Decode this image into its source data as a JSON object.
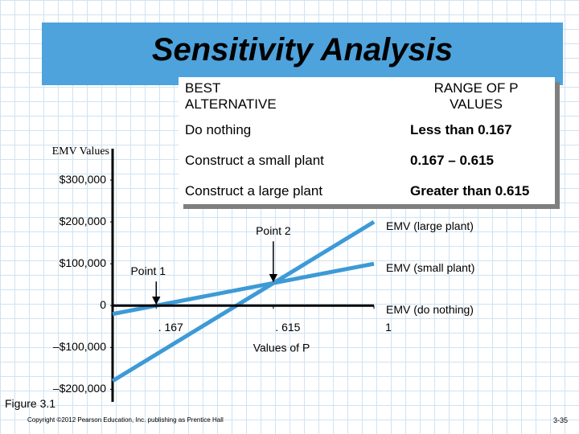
{
  "slide": {
    "title": "Sensitivity Analysis",
    "figure_label": "Figure 3.1",
    "copyright": "Copyright ©2012 Pearson Education, Inc. publishing as Prentice Hall",
    "page_number": "3-35"
  },
  "table": {
    "headers": [
      "BEST ALTERNATIVE",
      "RANGE OF P VALUES"
    ],
    "rows": [
      [
        "Do nothing",
        "Less than 0.167"
      ],
      [
        "Construct a small plant",
        "0.167 – 0.615"
      ],
      [
        "Construct a large plant",
        "Greater than 0.615"
      ]
    ]
  },
  "chart_data": {
    "type": "line",
    "y_label": "EMV Values",
    "x_label": "Values of P",
    "x": [
      0,
      1
    ],
    "xlim": [
      0,
      1
    ],
    "xticks": [
      {
        "value": 0.167,
        "label": ". 167"
      },
      {
        "value": 0.615,
        "label": ". 615"
      },
      1
    ],
    "ylim": [
      -230000,
      375000
    ],
    "yticks": [
      {
        "value": -200000,
        "label": "–$200,000"
      },
      {
        "value": -100000,
        "label": "–$100,000"
      },
      0,
      {
        "value": 100000,
        "label": "$100,000"
      },
      {
        "value": 200000,
        "label": "$200,000"
      },
      {
        "value": 300000,
        "label": "$300,000"
      }
    ],
    "series": [
      {
        "name": "EMV (large plant)",
        "color": "#3d9ad6",
        "values": [
          -180000,
          200000
        ]
      },
      {
        "name": "EMV (small plant)",
        "color": "#3d9ad6",
        "values": [
          -20000,
          100000
        ]
      },
      {
        "name": "EMV (do nothing)",
        "color": "#000000",
        "values": [
          0,
          0
        ]
      }
    ],
    "annotations": [
      {
        "text": "Point 1",
        "x": 0.167
      },
      {
        "text": "Point 2",
        "x": 0.615
      }
    ]
  }
}
